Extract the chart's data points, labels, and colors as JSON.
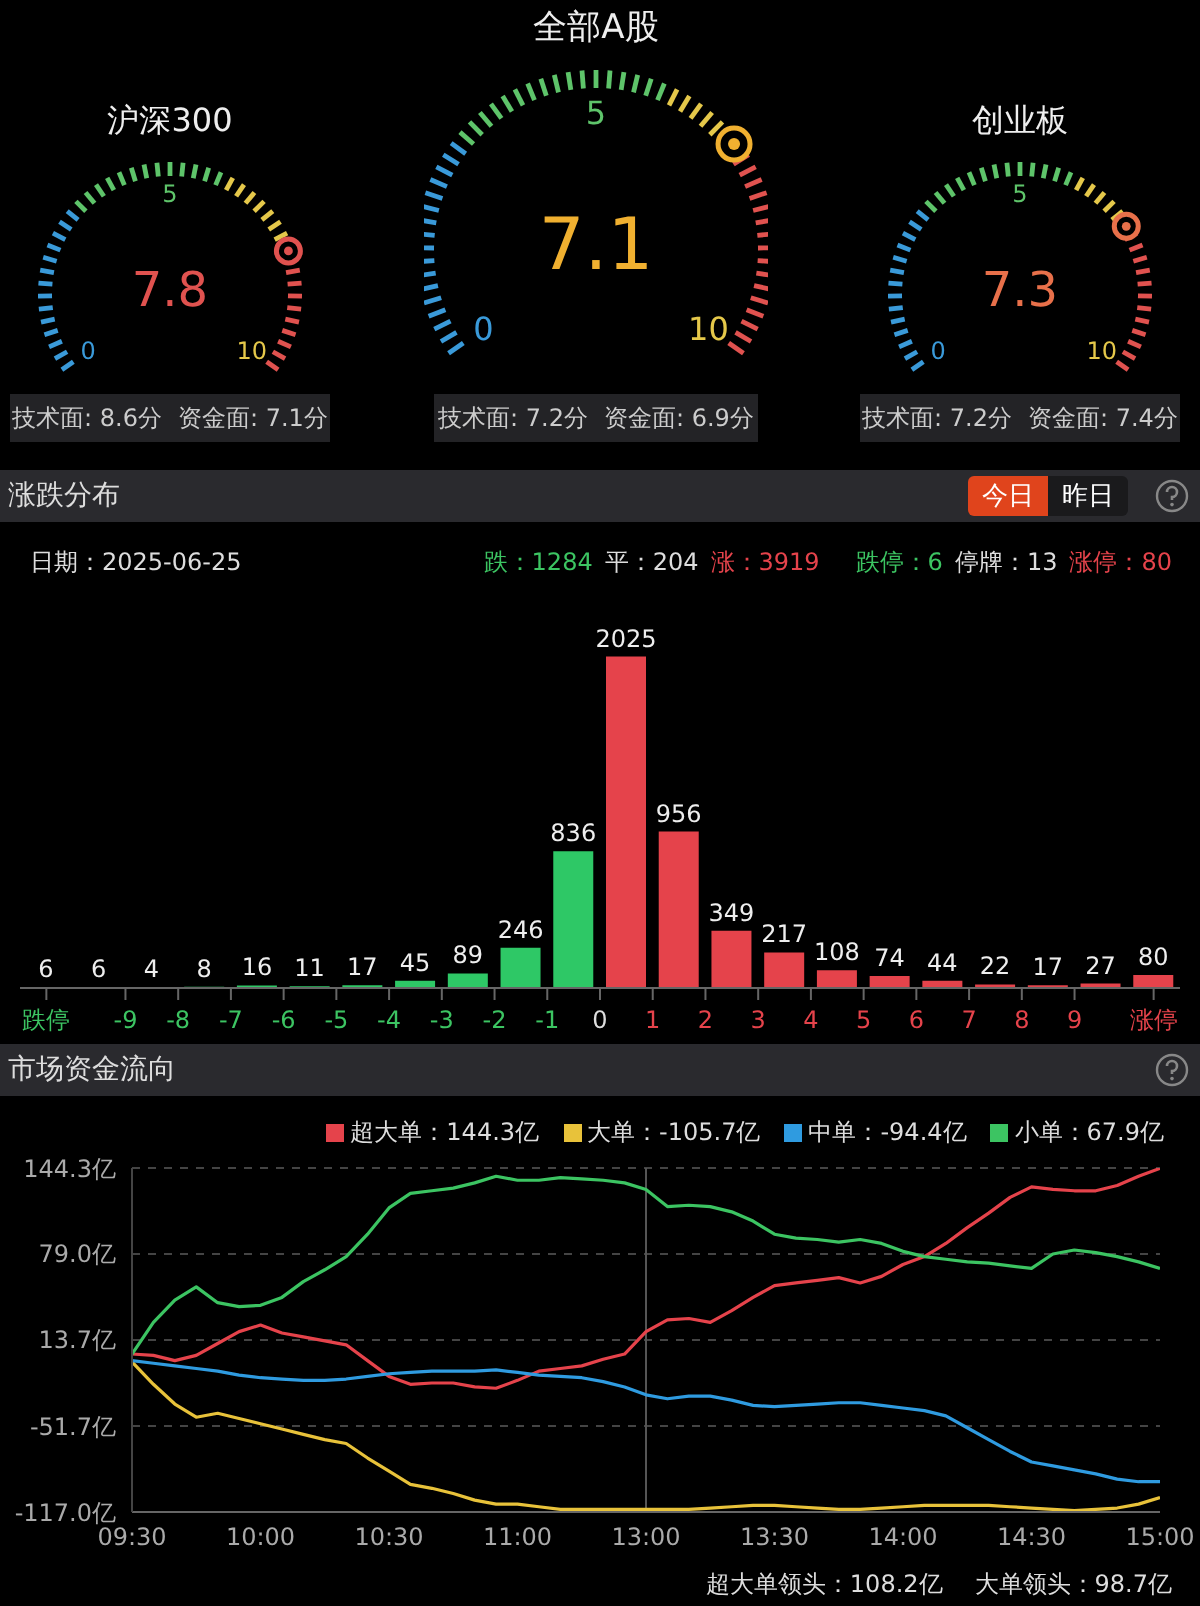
{
  "chart_data": [
    {
      "type": "other",
      "title": "沪深300",
      "values": [
        7.8
      ],
      "color": "#e0524f",
      "data_labels": true,
      "annotations": [
        "0",
        "5",
        "10",
        "技术面: 8.6分",
        "资金面: 7.1分"
      ]
    },
    {
      "type": "other",
      "title": "全部A股",
      "values": [
        7.1
      ],
      "color": "#f0b030",
      "data_labels": true,
      "annotations": [
        "0",
        "5",
        "10",
        "技术面: 7.2分",
        "资金面: 6.9分"
      ]
    },
    {
      "type": "other",
      "title": "创业板",
      "values": [
        7.3
      ],
      "color": "#e8704a",
      "data_labels": true,
      "annotations": [
        "0",
        "5",
        "10",
        "技术面: 7.2分",
        "资金面: 7.4分"
      ]
    },
    {
      "type": "bar",
      "title": "涨跌分布",
      "subtitle": "日期：2025-06-25",
      "x": [
        -10.5,
        -9.5,
        -8.5,
        -7.5,
        -6.5,
        -5.5,
        -4.5,
        -3.5,
        -2.5,
        -1.5,
        -0.5,
        0.5,
        1.5,
        2.5,
        3.5,
        4.5,
        5.5,
        6.5,
        7.5,
        8.5,
        9.5,
        10.5
      ],
      "values": [
        6,
        6,
        4,
        8,
        16,
        11,
        17,
        45,
        89,
        246,
        836,
        2025,
        956,
        349,
        217,
        108,
        74,
        44,
        22,
        17,
        27,
        80
      ],
      "colors": [
        "#2ec866",
        "#2ec866",
        "#2ec866",
        "#2ec866",
        "#2ec866",
        "#2ec866",
        "#2ec866",
        "#2ec866",
        "#2ec866",
        "#2ec866",
        "#2ec866",
        "#e5434b",
        "#e5434b",
        "#e5434b",
        "#e5434b",
        "#e5434b",
        "#e5434b",
        "#e5434b",
        "#e5434b",
        "#e5434b",
        "#e5434b",
        "#e5434b"
      ],
      "xlim": [
        -11,
        11
      ],
      "xticks": [
        {
          "value": -10.5,
          "label": "跌停"
        },
        -9,
        -8,
        -7,
        -6,
        -5,
        -4,
        -3,
        -2,
        -1,
        0,
        1,
        2,
        3,
        4,
        5,
        6,
        7,
        8,
        9,
        {
          "value": 10.5,
          "label": "涨停"
        }
      ],
      "data_labels": true,
      "tick_labels": "x",
      "grid": false,
      "annotations": [
        "跌：1284",
        "平：204",
        "涨：3919",
        "跌停：6",
        "停牌：13",
        "涨停：80",
        "今日",
        "昨日"
      ]
    },
    {
      "type": "line",
      "title": "市场资金流向",
      "legend": "top right",
      "grid": "y",
      "marker": "none",
      "line_style": "solid",
      "categories": [
        "09:30",
        null,
        null,
        null,
        null,
        null,
        "10:00",
        null,
        null,
        null,
        null,
        null,
        "10:30",
        null,
        null,
        null,
        null,
        null,
        "11:00",
        null,
        null,
        null,
        null,
        null,
        "13:00",
        null,
        null,
        null,
        null,
        null,
        "13:30",
        null,
        null,
        null,
        null,
        null,
        "14:00",
        null,
        null,
        null,
        null,
        null,
        "14:30",
        null,
        null,
        null,
        null,
        null,
        "15:00"
      ],
      "ylim": [
        -117.0,
        144.3
      ],
      "yticks": [
        {
          "value": 144.3,
          "label": "144.3亿"
        },
        {
          "value": 79.0,
          "label": "79.0亿"
        },
        {
          "value": 13.7,
          "label": "13.7亿"
        },
        {
          "value": -51.7,
          "label": "-51.7亿"
        },
        {
          "value": -117.0,
          "label": "-117.0亿"
        }
      ],
      "ref_lines": [
        {
          "axis": "x",
          "value": "13:00",
          "color": "#555555"
        }
      ],
      "series": [
        {
          "name": "超大单：144.3亿",
          "color": "#e5434b",
          "values": [
            3,
            2,
            -2,
            2,
            11,
            20,
            25,
            19,
            16,
            13,
            10,
            -2,
            -14,
            -20,
            -19,
            -19,
            -22,
            -23,
            -17,
            -10,
            -8,
            -6,
            -1,
            3,
            20,
            29,
            30,
            27,
            36,
            46,
            55,
            57,
            59,
            61,
            57,
            62,
            71,
            77,
            87,
            99,
            110,
            122,
            130,
            128,
            127,
            127,
            131,
            138,
            144
          ]
        },
        {
          "name": "大单：-105.7亿",
          "color": "#e8c23a",
          "values": [
            -3,
            -20,
            -35,
            -45,
            -42,
            -46,
            -50,
            -54,
            -58,
            -62,
            -65,
            -76,
            -86,
            -96,
            -99,
            -103,
            -108,
            -111,
            -111,
            -113,
            -115,
            -115,
            -115,
            -115,
            -115,
            -115,
            -115,
            -114,
            -113,
            -112,
            -112,
            -113,
            -114,
            -115,
            -115,
            -114,
            -113,
            -112,
            -112,
            -112,
            -112,
            -113,
            -114,
            -115,
            -116,
            -115,
            -114,
            -111,
            -106
          ]
        },
        {
          "name": "中单：-94.4亿",
          "color": "#2f9be0",
          "values": [
            -2,
            -4,
            -6,
            -8,
            -10,
            -13,
            -15,
            -16,
            -17,
            -17,
            -16,
            -14,
            -12,
            -11,
            -10,
            -10,
            -10,
            -9,
            -11,
            -13,
            -14,
            -15,
            -18,
            -22,
            -28,
            -31,
            -29,
            -29,
            -32,
            -36,
            -37,
            -36,
            -35,
            -34,
            -34,
            -36,
            -38,
            -40,
            -44,
            -53,
            -62,
            -71,
            -79,
            -82,
            -85,
            -88,
            -92,
            -94,
            -94
          ]
        },
        {
          "name": "小单：67.9亿",
          "color": "#3cc462",
          "values": [
            3,
            27,
            44,
            54,
            42,
            39,
            40,
            46,
            58,
            67,
            77,
            94,
            114,
            125,
            127,
            129,
            133,
            138,
            135,
            135,
            137,
            136,
            135,
            133,
            128,
            115,
            116,
            115,
            111,
            104,
            94,
            91,
            90,
            88,
            90,
            87,
            81,
            77,
            75,
            73,
            72,
            70,
            68,
            79,
            82,
            80,
            77,
            73,
            68
          ]
        }
      ],
      "annotations": [
        "超大单领头：108.2亿",
        "大单领头：98.7亿"
      ]
    }
  ]
}
